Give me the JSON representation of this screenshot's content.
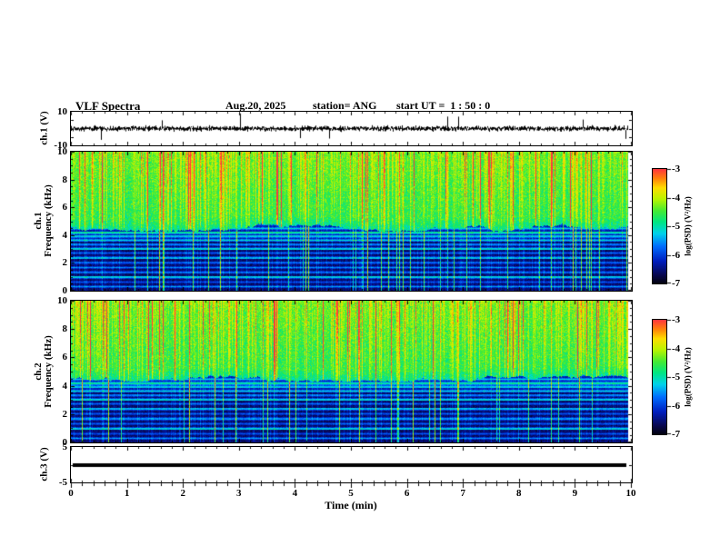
{
  "header": {
    "title": "VLF Spectra",
    "date": "Aug.20, 2025",
    "station": "station= ANG",
    "start_ut": "start UT =  1 : 50 : 0"
  },
  "xaxis": {
    "label": "Time (min)",
    "range": [
      0,
      10
    ],
    "ticks": [
      0,
      1,
      2,
      3,
      4,
      5,
      6,
      7,
      8,
      9,
      10
    ]
  },
  "colorbar": {
    "label": "log(PSD) (V²/Hz)",
    "range": [
      -7,
      -3
    ],
    "ticks": [
      -3,
      -4,
      -5,
      -6,
      -7
    ]
  },
  "chart_data": [
    {
      "panel": "ch1-waveform",
      "type": "line",
      "ylabel": "ch.1 (V)",
      "xlim": [
        0,
        10
      ],
      "ylim": [
        -10,
        10
      ],
      "yticks": [
        10,
        -10
      ],
      "summary": "continuous broadband noise around 0 V (about ±1.5 V) with sparse impulsive spikes reaching about ±9 V throughout the 10 minute record"
    },
    {
      "panel": "ch1-spectrogram",
      "type": "heatmap",
      "ylabel_lines": [
        "ch.1",
        "Frequency (kHz)"
      ],
      "xlim": [
        0,
        10
      ],
      "ylim": [
        0,
        10
      ],
      "yticks": [
        10,
        8,
        6,
        4,
        2,
        0
      ],
      "value_label": "log(PSD) (V²/Hz)",
      "value_range": [
        -7,
        -3
      ],
      "features": [
        "above ~5 kHz: strong broadband hiss near -4.5 (green/yellow) with dense vertical sferic streaks reaching -3 (red)",
        "below ~5 kHz: weak background near -6.5 (dark blue/black), slightly enhanced band between ~3.6 and 4.6 kHz",
        "narrow horizontal interference lines roughly every 0.35 kHz from ~0.3 to ~4.8 kHz (cyan/green, about -5)",
        "impulsive vertical streaks penetrate down through the low-frequency band for the whole interval"
      ]
    },
    {
      "panel": "ch2-spectrogram",
      "type": "heatmap",
      "ylabel_lines": [
        "ch.2",
        "Frequency (kHz)"
      ],
      "xlim": [
        0,
        10
      ],
      "ylim": [
        0,
        10
      ],
      "yticks": [
        10,
        8,
        6,
        4,
        2,
        0
      ],
      "value_label": "log(PSD) (V²/Hz)",
      "value_range": [
        -7,
        -3
      ],
      "features": [
        "same structure as ch.1: hiss band above ~5 kHz (green/yellow with red sferic streaks), dark background with horizontal interference lines below ~5 kHz, vertical streaks throughout"
      ]
    },
    {
      "panel": "ch3-waveform",
      "type": "line",
      "ylabel": "ch.3 (V)",
      "xlim": [
        0,
        10
      ],
      "ylim": [
        -5,
        5
      ],
      "yticks": [
        5,
        -5
      ],
      "summary": "flat line at 0 V for the whole interval"
    }
  ]
}
